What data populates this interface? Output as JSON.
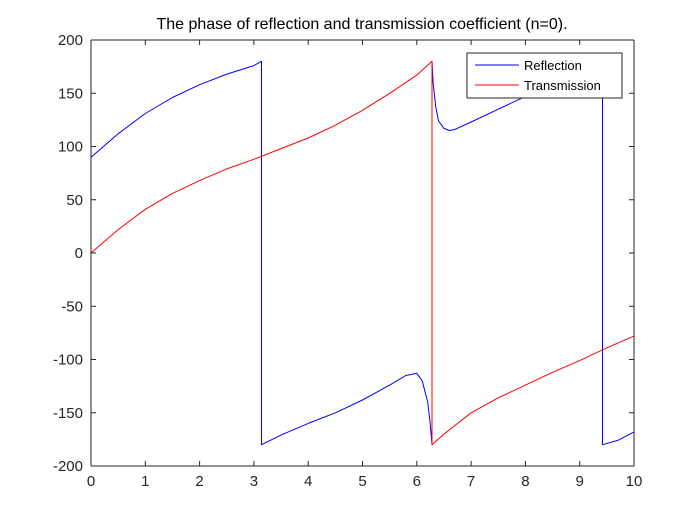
{
  "chart_data": {
    "type": "line",
    "title": "The phase of reflection and transmission coefficient (n=0).",
    "xlabel": "",
    "ylabel": "",
    "xlim": [
      0,
      10
    ],
    "ylim": [
      -200,
      200
    ],
    "xticks": [
      0,
      1,
      2,
      3,
      4,
      5,
      6,
      7,
      8,
      9,
      10
    ],
    "yticks": [
      -200,
      -150,
      -100,
      -50,
      0,
      50,
      100,
      150,
      200
    ],
    "grid": false,
    "legend": {
      "position": "top-right"
    },
    "series": [
      {
        "name": "Reflection",
        "color": "#0000ff",
        "x": [
          0,
          0.5,
          1,
          1.5,
          2,
          2.5,
          3,
          3.14,
          3.14,
          3.5,
          4,
          4.5,
          5,
          5.5,
          5.8,
          6,
          6.1,
          6.2,
          6.25,
          6.28,
          6.28,
          6.3,
          6.35,
          6.4,
          6.5,
          6.6,
          6.7,
          7,
          7.5,
          8,
          8.5,
          9,
          9.42,
          9.42,
          9.7,
          10
        ],
        "y": [
          90,
          112,
          131,
          146,
          158,
          168,
          176,
          180,
          -180,
          -171,
          -160,
          -150,
          -138,
          -124,
          -115,
          -113,
          -120,
          -140,
          -162,
          -180,
          180,
          160,
          137,
          124,
          117,
          115,
          116,
          123,
          135,
          147,
          160,
          171,
          180,
          -180,
          -176,
          -168
        ]
      },
      {
        "name": "Transmission",
        "color": "#ff0000",
        "x": [
          0,
          0.5,
          1,
          1.5,
          2,
          2.5,
          3,
          3.5,
          4,
          4.5,
          5,
          5.5,
          6,
          6.28,
          6.28,
          6.5,
          7,
          7.5,
          8,
          8.5,
          9,
          9.5,
          10
        ],
        "y": [
          0,
          22,
          41,
          56,
          68,
          79,
          88,
          98,
          108,
          120,
          134,
          150,
          167,
          180,
          -180,
          -170,
          -150,
          -136,
          -124,
          -112,
          -101,
          -89,
          -78
        ]
      }
    ]
  }
}
